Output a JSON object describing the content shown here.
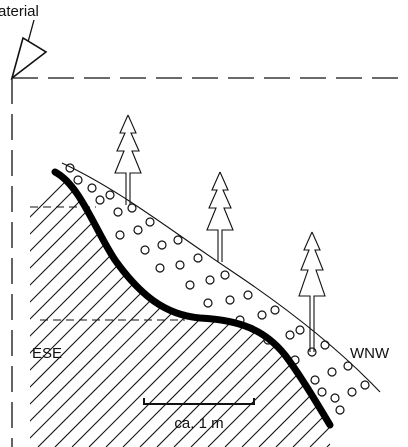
{
  "labels": {
    "arrow_label": "aterial",
    "left_direction": "ESE",
    "right_direction": "WNW",
    "scale": "ca. 1 m"
  }
}
